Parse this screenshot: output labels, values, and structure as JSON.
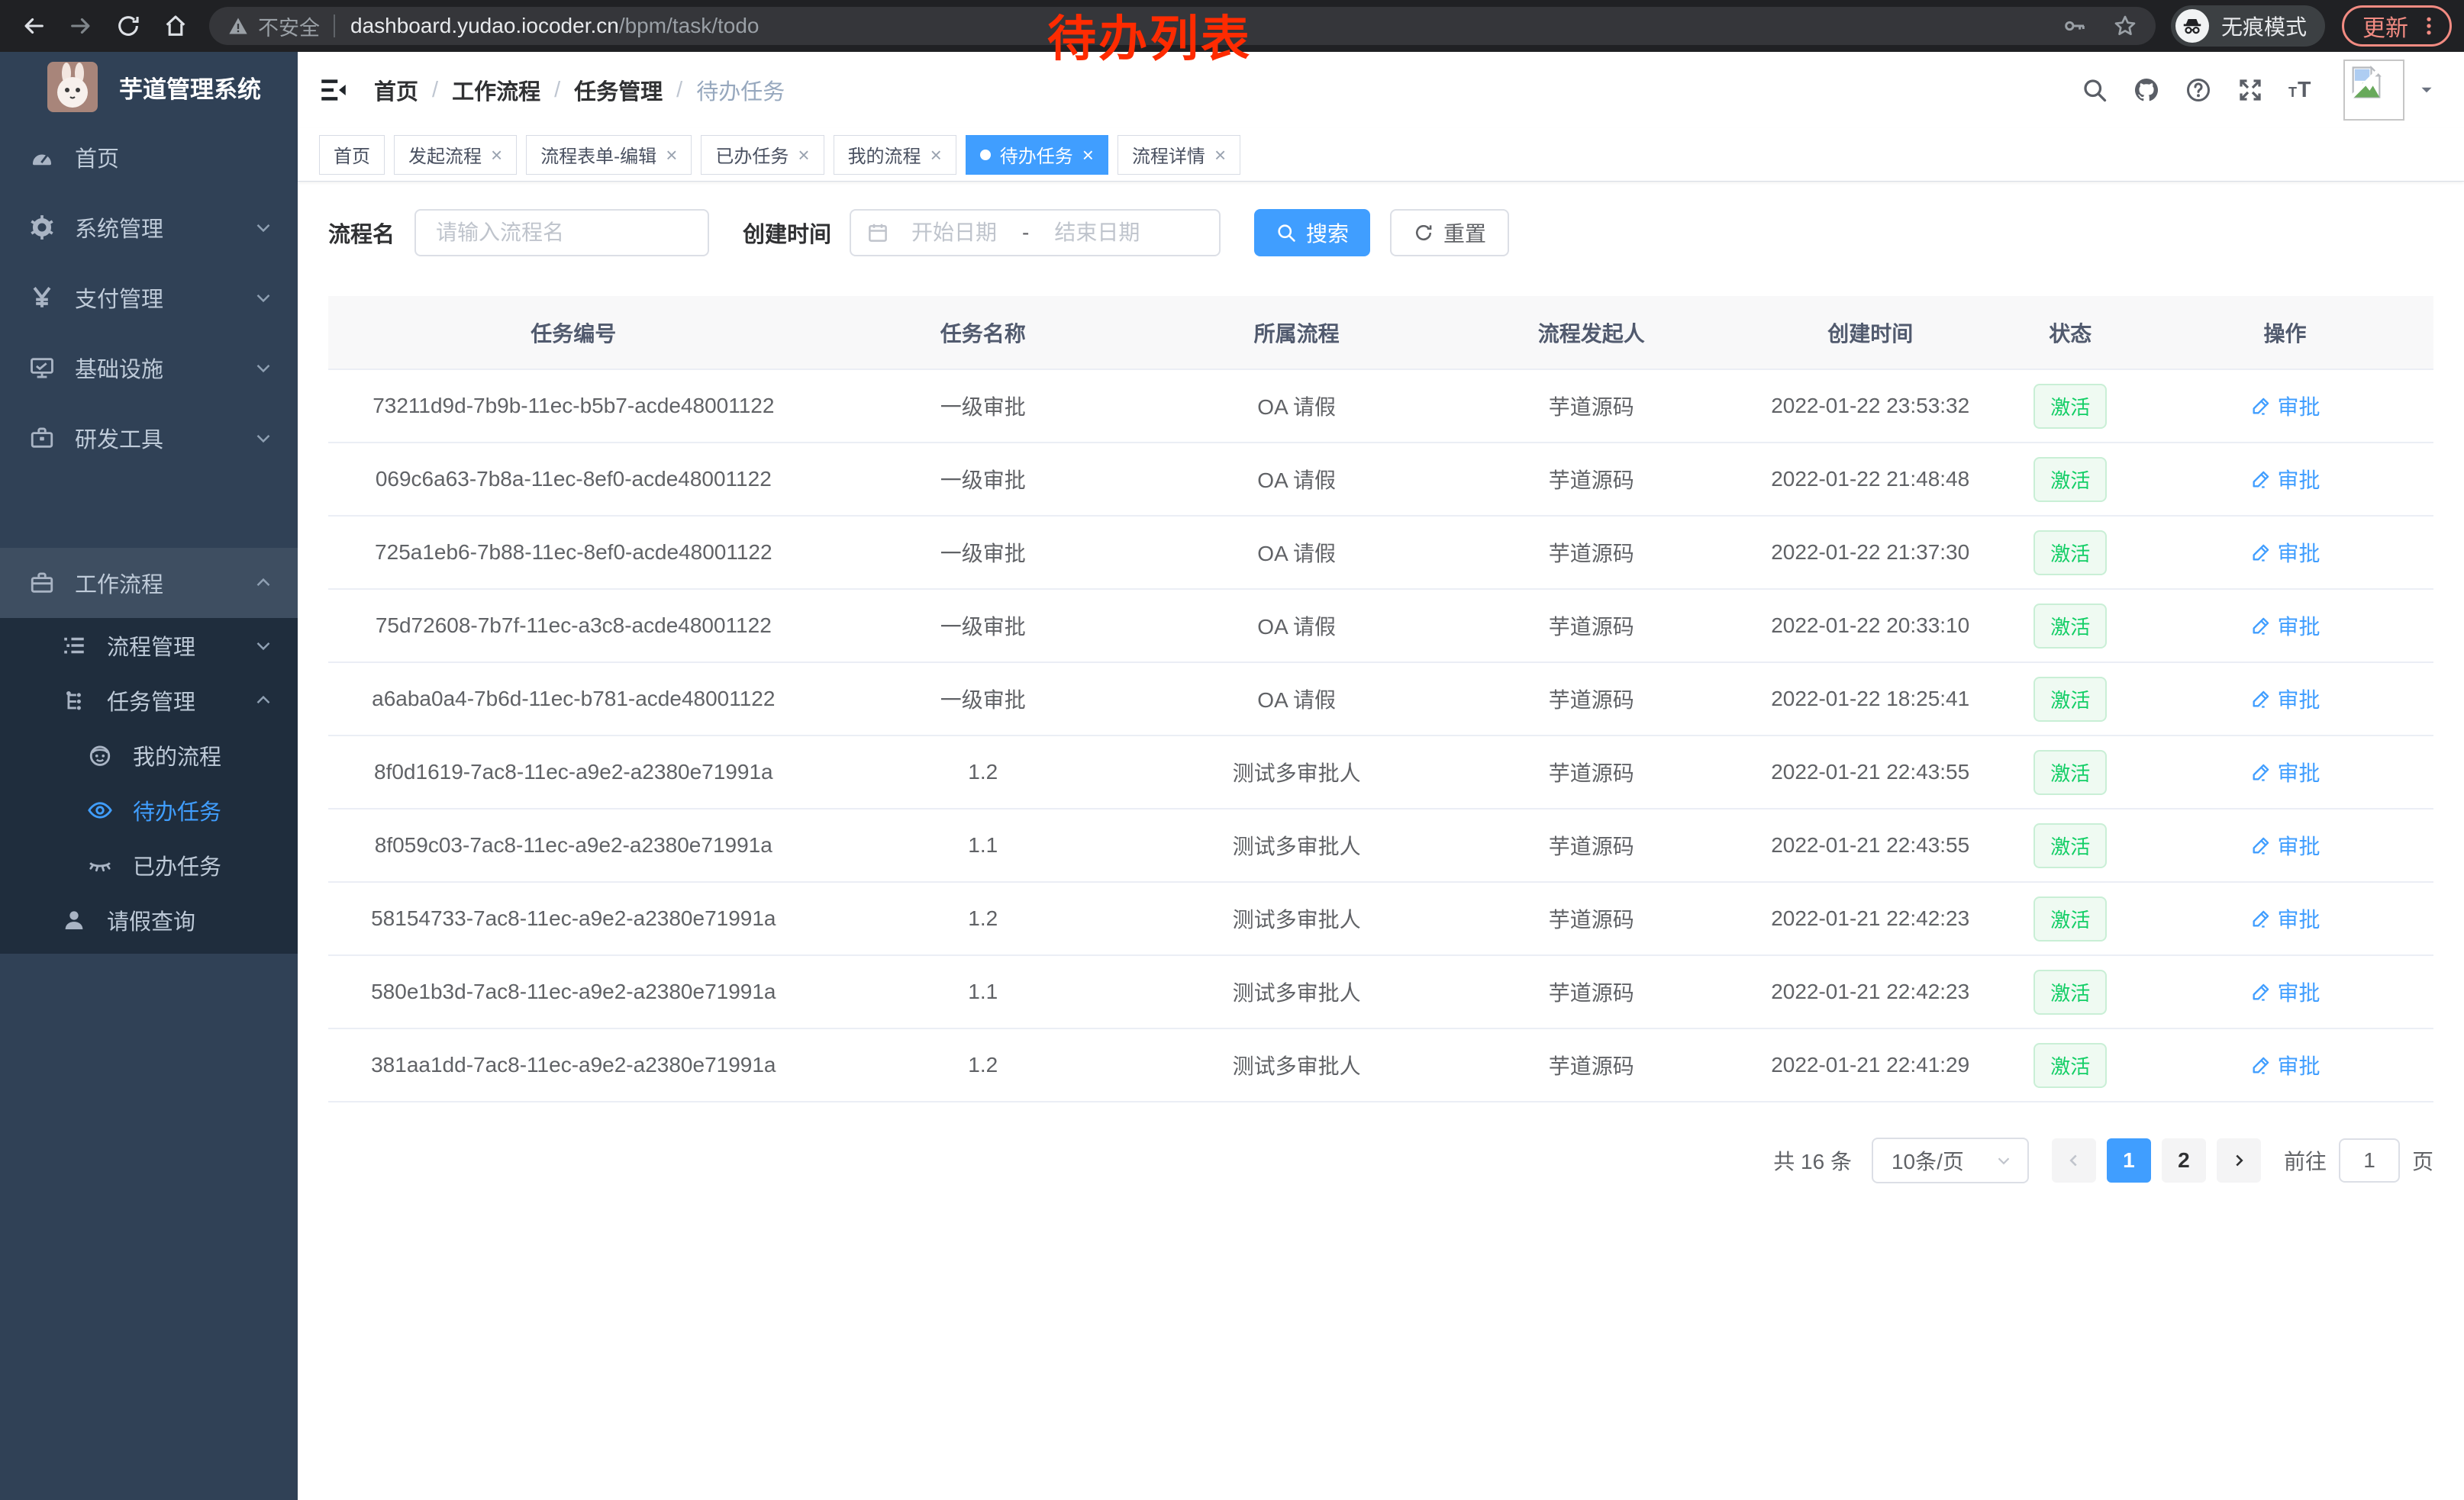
{
  "browser": {
    "security_label": "不安全",
    "url_domain": "dashboard.yudao.iocoder.cn",
    "url_path": "/bpm/task/todo",
    "incognito_label": "无痕模式",
    "update_label": "更新"
  },
  "annotation": {
    "text": "待办列表",
    "color": "#fe2b01"
  },
  "sidebar": {
    "title": "芋道管理系统",
    "items_top": [
      {
        "name": "home",
        "icon": "i-gauge",
        "label": "首页"
      },
      {
        "name": "system",
        "icon": "i-gear",
        "label": "系统管理",
        "chevron": "down"
      },
      {
        "name": "payment",
        "icon": "i-yen",
        "label": "支付管理",
        "chevron": "down"
      },
      {
        "name": "infrastructure",
        "icon": "i-monitor",
        "label": "基础设施",
        "chevron": "down"
      },
      {
        "name": "devtools",
        "icon": "i-toolbox",
        "label": "研发工具",
        "chevron": "down"
      }
    ],
    "workflow": {
      "name": "workflow",
      "icon": "i-briefcase",
      "label": "工作流程",
      "chevron": "up"
    },
    "items_sub": [
      {
        "name": "process-mgmt",
        "icon": "i-list",
        "label": "流程管理",
        "level": 2,
        "chevron": "down"
      },
      {
        "name": "task-mgmt",
        "icon": "i-flow",
        "label": "任务管理",
        "level": 2,
        "chevron": "up"
      },
      {
        "name": "my-process",
        "icon": "i-robot",
        "label": "我的流程",
        "level": 3
      },
      {
        "name": "todo-tasks",
        "icon": "i-eye",
        "label": "待办任务",
        "level": 3,
        "active": true
      },
      {
        "name": "done-tasks",
        "icon": "i-eye-closed",
        "label": "已办任务",
        "level": 3
      },
      {
        "name": "leave-query",
        "icon": "i-user",
        "label": "请假查询",
        "level": 2
      }
    ]
  },
  "breadcrumb": [
    "首页",
    "工作流程",
    "任务管理",
    "待办任务"
  ],
  "tabs": {
    "close_glyph": "×",
    "items": [
      {
        "name": "home",
        "label": "首页",
        "closable": false
      },
      {
        "name": "start-process",
        "label": "发起流程",
        "closable": true
      },
      {
        "name": "form-edit",
        "label": "流程表单-编辑",
        "closable": true
      },
      {
        "name": "done-tasks",
        "label": "已办任务",
        "closable": true
      },
      {
        "name": "my-process",
        "label": "我的流程",
        "closable": true
      },
      {
        "name": "todo-tasks",
        "label": "待办任务",
        "closable": true,
        "active": true
      },
      {
        "name": "process-detail",
        "label": "流程详情",
        "closable": true
      }
    ]
  },
  "filters": {
    "name_label": "流程名",
    "name_placeholder": "请输入流程名",
    "time_label": "创建时间",
    "start_placeholder": "开始日期",
    "separator": "-",
    "end_placeholder": "结束日期",
    "search_label": "搜索",
    "reset_label": "重置"
  },
  "table": {
    "columns": [
      "任务编号",
      "任务名称",
      "所属流程",
      "流程发起人",
      "创建时间",
      "状态",
      "操作"
    ],
    "rows": [
      {
        "id": "73211d9d-7b9b-11ec-b5b7-acde48001122",
        "name": "一级审批",
        "process": "OA 请假",
        "initiator": "芋道源码",
        "time": "2022-01-22 23:53:32",
        "status": "激活",
        "action": "审批"
      },
      {
        "id": "069c6a63-7b8a-11ec-8ef0-acde48001122",
        "name": "一级审批",
        "process": "OA 请假",
        "initiator": "芋道源码",
        "time": "2022-01-22 21:48:48",
        "status": "激活",
        "action": "审批"
      },
      {
        "id": "725a1eb6-7b88-11ec-8ef0-acde48001122",
        "name": "一级审批",
        "process": "OA 请假",
        "initiator": "芋道源码",
        "time": "2022-01-22 21:37:30",
        "status": "激活",
        "action": "审批"
      },
      {
        "id": "75d72608-7b7f-11ec-a3c8-acde48001122",
        "name": "一级审批",
        "process": "OA 请假",
        "initiator": "芋道源码",
        "time": "2022-01-22 20:33:10",
        "status": "激活",
        "action": "审批"
      },
      {
        "id": "a6aba0a4-7b6d-11ec-b781-acde48001122",
        "name": "一级审批",
        "process": "OA 请假",
        "initiator": "芋道源码",
        "time": "2022-01-22 18:25:41",
        "status": "激活",
        "action": "审批"
      },
      {
        "id": "8f0d1619-7ac8-11ec-a9e2-a2380e71991a",
        "name": "1.2",
        "process": "测试多审批人",
        "initiator": "芋道源码",
        "time": "2022-01-21 22:43:55",
        "status": "激活",
        "action": "审批"
      },
      {
        "id": "8f059c03-7ac8-11ec-a9e2-a2380e71991a",
        "name": "1.1",
        "process": "测试多审批人",
        "initiator": "芋道源码",
        "time": "2022-01-21 22:43:55",
        "status": "激活",
        "action": "审批"
      },
      {
        "id": "58154733-7ac8-11ec-a9e2-a2380e71991a",
        "name": "1.2",
        "process": "测试多审批人",
        "initiator": "芋道源码",
        "time": "2022-01-21 22:42:23",
        "status": "激活",
        "action": "审批"
      },
      {
        "id": "580e1b3d-7ac8-11ec-a9e2-a2380e71991a",
        "name": "1.1",
        "process": "测试多审批人",
        "initiator": "芋道源码",
        "time": "2022-01-21 22:42:23",
        "status": "激活",
        "action": "审批"
      },
      {
        "id": "381aa1dd-7ac8-11ec-a9e2-a2380e71991a",
        "name": "1.2",
        "process": "测试多审批人",
        "initiator": "芋道源码",
        "time": "2022-01-21 22:41:29",
        "status": "激活",
        "action": "审批"
      }
    ]
  },
  "pagination": {
    "total": "共 16 条",
    "page_size": "10条/页",
    "pages": [
      "1",
      "2"
    ],
    "active_page": "1",
    "goto_label": "前往",
    "goto_value": "1",
    "goto_suffix": "页"
  },
  "colors": {
    "accent_blue": "#409eff",
    "sidebar_bg": "#304156",
    "submenu_bg": "#1f2d3d",
    "success_green": "#13ce66",
    "annotation_red": "#fe2b01"
  }
}
